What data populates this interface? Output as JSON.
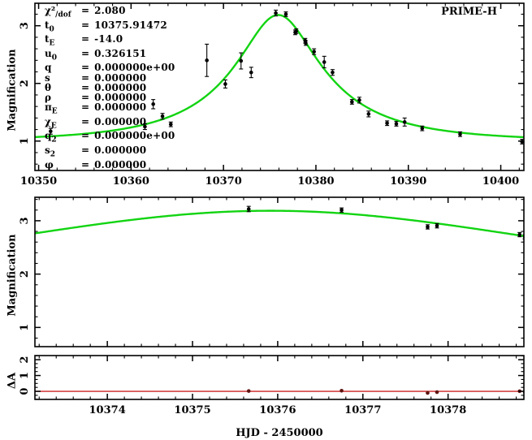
{
  "header": {
    "instrument_label": "PRIME-H"
  },
  "axes": {
    "x_label": "HJD - 2450000",
    "y_label_magnification": "Magnification",
    "y_label_residual": "ΔA"
  },
  "params": {
    "rows": [
      {
        "name": "χ²",
        "sub": "/dof",
        "eq": "=",
        "value": "2.080"
      },
      {
        "name": "t",
        "sub": "0",
        "eq": "=",
        "value": "10375.91472"
      },
      {
        "name": "t",
        "sub": "E",
        "eq": "=",
        "value": "-14.0"
      },
      {
        "name": "u",
        "sub": "0",
        "eq": "=",
        "value": "0.326151"
      },
      {
        "name": "q",
        "sub": "",
        "eq": "=",
        "value": "0.000000e+00"
      },
      {
        "name": "s",
        "sub": "",
        "eq": "=",
        "value": "0.000000"
      },
      {
        "name": "θ",
        "sub": "",
        "eq": "=",
        "value": "0.000000"
      },
      {
        "name": "ρ",
        "sub": "",
        "eq": "=",
        "value": "0.000000"
      },
      {
        "name": "π",
        "sub": "E",
        "eq": "=",
        "value": "0.000000"
      },
      {
        "name": "χ",
        "sub": "E",
        "eq": "=",
        "value": "0.000000"
      },
      {
        "name": "q",
        "sub": "2",
        "eq": "=",
        "value": "0.000000e+00"
      },
      {
        "name": "s",
        "sub": "2",
        "eq": "=",
        "value": "0.000000"
      },
      {
        "name": "φ",
        "sub": "",
        "eq": "=",
        "value": "0.000000"
      }
    ]
  },
  "colors": {
    "fit_curve": "#12d412",
    "zero_line": "#cc2222",
    "data_point": "#000000",
    "residual_point": "#5e1410",
    "frame": "#000000",
    "background": "#ffffff"
  },
  "chart_data": [
    {
      "id": "full-light-curve",
      "type": "scatter+line",
      "ylabel": "Magnification",
      "xlim": [
        10349.6,
        10402.5
      ],
      "ylim": [
        0.49,
        3.39
      ],
      "xticks": [
        10350,
        10360,
        10370,
        10380,
        10390,
        10400
      ],
      "x_minor_step": 2,
      "yticks": [
        1,
        2,
        3
      ],
      "y_minor_step": 0.2,
      "x_labels_visible": true,
      "model": {
        "type": "PSPL",
        "t0": 10375.91472,
        "u0": 0.326151,
        "tE": -14.0
      },
      "points": [
        [
          10351.3,
          1.17,
          0.05
        ],
        [
          10361.5,
          1.25,
          0.05
        ],
        [
          10362.4,
          1.64,
          0.08
        ],
        [
          10363.4,
          1.43,
          0.05
        ],
        [
          10364.3,
          1.29,
          0.04
        ],
        [
          10368.2,
          2.4,
          0.28
        ],
        [
          10370.2,
          1.99,
          0.07
        ],
        [
          10371.9,
          2.39,
          0.14
        ],
        [
          10373.0,
          2.19,
          0.09
        ],
        [
          10375.66,
          3.22,
          0.05
        ],
        [
          10376.75,
          3.2,
          0.04
        ],
        [
          10377.76,
          2.885,
          0.04
        ],
        [
          10377.87,
          2.905,
          0.04
        ],
        [
          10378.84,
          2.74,
          0.04
        ],
        [
          10378.9,
          2.7,
          0.04
        ],
        [
          10379.8,
          2.55,
          0.05
        ],
        [
          10380.9,
          2.37,
          0.1
        ],
        [
          10381.8,
          2.19,
          0.05
        ],
        [
          10383.9,
          1.68,
          0.04
        ],
        [
          10384.7,
          1.71,
          0.05
        ],
        [
          10385.7,
          1.47,
          0.05
        ],
        [
          10387.7,
          1.31,
          0.04
        ],
        [
          10388.7,
          1.3,
          0.04
        ],
        [
          10389.6,
          1.33,
          0.07
        ],
        [
          10391.5,
          1.22,
          0.04
        ],
        [
          10395.6,
          1.12,
          0.04
        ],
        [
          10402.3,
          0.99,
          0.04
        ]
      ]
    },
    {
      "id": "peak-zoom",
      "type": "scatter+line",
      "ylabel": "Magnification",
      "xlim": [
        10373.15,
        10378.89
      ],
      "ylim": [
        0.64,
        3.44
      ],
      "xticks": [
        10374,
        10375,
        10376,
        10377,
        10378
      ],
      "x_minor_step": 0.2,
      "yticks": [
        1,
        2,
        3
      ],
      "y_minor_step": 0.2,
      "x_labels_visible": false,
      "model": {
        "type": "PSPL",
        "t0": 10375.91472,
        "u0": 0.326151,
        "tE": -14.0
      },
      "points": [
        [
          10375.66,
          3.22,
          0.05
        ],
        [
          10376.75,
          3.2,
          0.04
        ],
        [
          10377.76,
          2.885,
          0.04
        ],
        [
          10377.87,
          2.905,
          0.04
        ],
        [
          10378.84,
          2.74,
          0.04
        ],
        [
          10378.9,
          2.7,
          0.04
        ]
      ]
    },
    {
      "id": "residuals",
      "type": "scatter",
      "ylabel": "ΔA",
      "xlim": [
        10373.15,
        10378.89
      ],
      "ylim": [
        -0.51,
        2.26
      ],
      "xticks": [
        10374,
        10375,
        10376,
        10377,
        10378
      ],
      "x_minor_step": 0.2,
      "yticks": [
        0,
        1,
        2
      ],
      "y_minor_step": 0.25,
      "x_labels_visible": true,
      "zero_line": 0,
      "points": [
        [
          10375.66,
          0.02
        ],
        [
          10376.75,
          0.04
        ],
        [
          10377.76,
          -0.1
        ],
        [
          10377.87,
          -0.05
        ],
        [
          10378.84,
          0.01
        ],
        [
          10378.9,
          -0.03
        ]
      ]
    }
  ]
}
